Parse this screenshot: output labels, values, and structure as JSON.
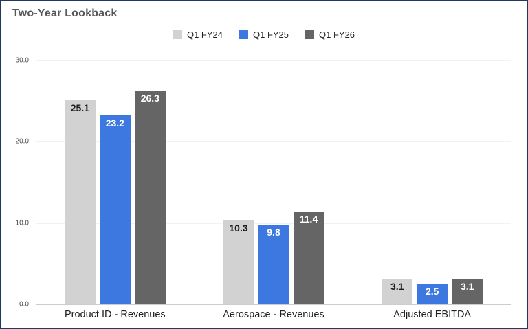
{
  "title": "Two-Year Lookback",
  "colors": {
    "border": "#1f3a5f",
    "title_text": "#575757",
    "gridline": "#e4e4e4",
    "axis_line": "#9a9a9a"
  },
  "chart_data": {
    "type": "bar",
    "title": "Two-Year Lookback",
    "xlabel": "",
    "ylabel": "",
    "ylim": [
      0,
      30
    ],
    "grid": true,
    "legend_position": "top",
    "categories": [
      "Product ID - Revenues",
      "Aerospace - Revenues",
      "Adjusted EBITDA"
    ],
    "series": [
      {
        "name": "Q1 FY24",
        "color": "#d2d2d2",
        "label_color": "#1a1a1a",
        "values": [
          25.1,
          10.3,
          3.1
        ]
      },
      {
        "name": "Q1 FY25",
        "color": "#3c78e0",
        "label_color": "#ffffff",
        "values": [
          23.2,
          9.8,
          2.5
        ]
      },
      {
        "name": "Q1 FY26",
        "color": "#656565",
        "label_color": "#ffffff",
        "values": [
          26.3,
          11.4,
          3.1
        ]
      }
    ],
    "yticks": [
      {
        "value": 0,
        "label": "0.0"
      },
      {
        "value": 10,
        "label": "10.0"
      },
      {
        "value": 20,
        "label": "20.0"
      },
      {
        "value": 30,
        "label": "30.0"
      }
    ]
  }
}
